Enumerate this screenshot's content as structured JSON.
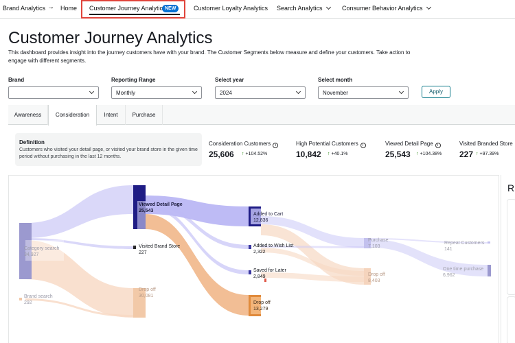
{
  "nav": {
    "breadcrumb_root": "Brand Analytics",
    "breadcrumb_arrow": "→",
    "home": "Home",
    "active": "Customer Journey Analytics",
    "new_badge": "NEW",
    "items": [
      "Customer Loyalty Analytics",
      "Search Analytics",
      "Consumer Behavior Analytics"
    ]
  },
  "header": {
    "title": "Customer Journey Analytics",
    "description": "This dashboard provides insight into the journey customers have with your brand. The Customer Segments below measure and define your customers. Take action to engage with different segments."
  },
  "filters": {
    "brand": {
      "label": "Brand",
      "value": ""
    },
    "range": {
      "label": "Reporting Range",
      "value": "Monthly"
    },
    "year": {
      "label": "Select year",
      "value": "2024"
    },
    "month": {
      "label": "Select month",
      "value": "November"
    },
    "apply": "Apply"
  },
  "tabs": [
    "Awareness",
    "Consideration",
    "Intent",
    "Purchase"
  ],
  "active_tab": "Consideration",
  "definition": {
    "title": "Definition",
    "text": "Customers who visited your detail page, or visited your brand store in the given time period without purchasing in the last 12 months."
  },
  "metrics": [
    {
      "label": "Consideration Customers",
      "value": "25,606",
      "change": "+104.52%"
    },
    {
      "label": "High Potential Customers",
      "value": "10,842",
      "change": "+40.1%"
    },
    {
      "label": "Viewed Detail Page",
      "value": "25,543",
      "change": "+104.38%"
    },
    {
      "label": "Visited Branded Store",
      "value": "227",
      "change": "+97.39%"
    }
  ],
  "sankey": {
    "nodes": {
      "category_search": {
        "label": "Category search",
        "value": "34,927"
      },
      "brand_search": {
        "label": "Brand search",
        "value": "292"
      },
      "viewed_detail": {
        "label": "Viewed Detail Page",
        "value": "25,543"
      },
      "visited_store": {
        "label": "Visited Brand Store",
        "value": "227"
      },
      "drop_off_1": {
        "label": "Drop off",
        "value": "30,081"
      },
      "added_cart": {
        "label": "Added to Cart",
        "value": "12,836"
      },
      "added_wish": {
        "label": "Added to Wish List",
        "value": "2,322"
      },
      "saved_later": {
        "label": "Saved for Later",
        "value": "2,849"
      },
      "drop_off_2": {
        "label": "Drop off",
        "value": "13,279"
      },
      "purchase": {
        "label": "Purchase",
        "value": "7,103"
      },
      "drop_off_3": {
        "label": "Drop off",
        "value": "8,403"
      },
      "repeat": {
        "label": "Repeat Customers",
        "value": "141"
      },
      "one_time": {
        "label": "One time purchase",
        "value": "6,962"
      }
    },
    "colors": {
      "consider": "#b9b6f5",
      "drop": "#f2b88c",
      "node_dark": "#1f1c85",
      "node_mid": "#8a88c8",
      "drop_node": "#e08a3c"
    }
  },
  "side": {
    "title": "R"
  }
}
